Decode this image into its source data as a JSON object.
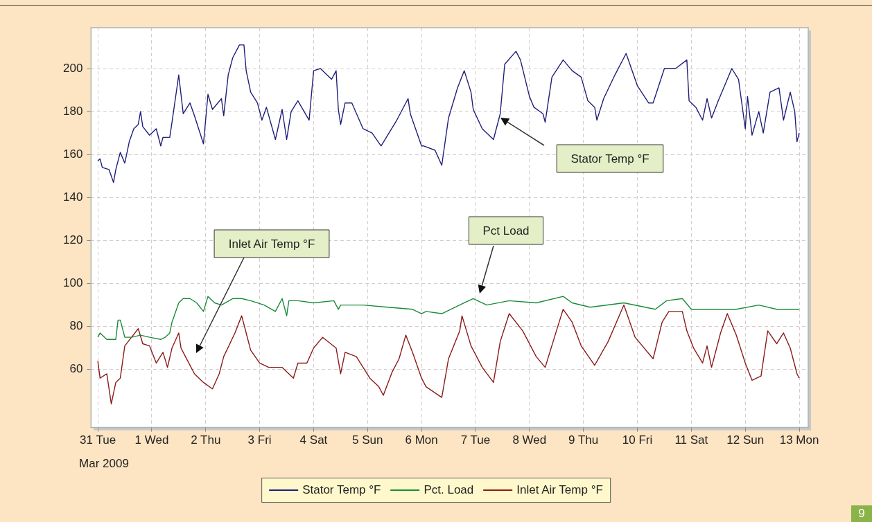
{
  "chart_data": {
    "type": "line",
    "xlabel": "Mar 2009",
    "annotations": [
      "Stator Temp °F",
      "Inlet Air Temp °F",
      "Pct Load",
      "9"
    ],
    "xlim": [
      "2009-03-30T21:00",
      "2009-04-13T04:00"
    ],
    "xticks": [
      {
        "value": "2009-03-31T00:00",
        "label": "31 Tue"
      },
      {
        "value": "2009-04-01T00:00",
        "label": "1 Wed"
      },
      {
        "value": "2009-04-02T00:00",
        "label": "2 Thu"
      },
      {
        "value": "2009-04-03T00:00",
        "label": "3 Fri"
      },
      {
        "value": "2009-04-04T00:00",
        "label": "4 Sat"
      },
      {
        "value": "2009-04-05T00:00",
        "label": "5 Sun"
      },
      {
        "value": "2009-04-06T00:00",
        "label": "6 Mon"
      },
      {
        "value": "2009-04-07T00:00",
        "label": "7 Tue"
      },
      {
        "value": "2009-04-08T00:00",
        "label": "8 Wed"
      },
      {
        "value": "2009-04-09T00:00",
        "label": "9 Thu"
      },
      {
        "value": "2009-04-10T00:00",
        "label": "10 Fri"
      },
      {
        "value": "2009-04-11T00:00",
        "label": "11 Sat"
      },
      {
        "value": "2009-04-12T00:00",
        "label": "12 Sun"
      },
      {
        "value": "2009-04-13T00:00",
        "label": "13 Mon"
      }
    ],
    "ylim": [
      33,
      219
    ],
    "yticks": [
      60,
      80,
      100,
      120,
      140,
      160,
      180,
      200
    ],
    "grid": true,
    "legend": "bottom",
    "line_style": "solid",
    "series": [
      {
        "name": "Stator Temp °F",
        "color": "#1f1f7a",
        "x": [
          "2009-03-31T00:00",
          "2009-03-31T01:00",
          "2009-03-31T02:00",
          "2009-03-31T05:00",
          "2009-03-31T07:00",
          "2009-03-31T08:00",
          "2009-03-31T10:00",
          "2009-03-31T12:00",
          "2009-03-31T14:00",
          "2009-03-31T16:00",
          "2009-03-31T18:00",
          "2009-03-31T19:00",
          "2009-03-31T20:00",
          "2009-03-31T23:00",
          "2009-04-01T02:00",
          "2009-04-01T04:00",
          "2009-04-01T05:00",
          "2009-04-01T08:00",
          "2009-04-01T09:00",
          "2009-04-01T12:00",
          "2009-04-01T14:00",
          "2009-04-01T17:00",
          "2009-04-01T19:00",
          "2009-04-01T23:00",
          "2009-04-02T01:00",
          "2009-04-02T03:00",
          "2009-04-02T07:00",
          "2009-04-02T08:00",
          "2009-04-02T10:00",
          "2009-04-02T12:00",
          "2009-04-02T15:00",
          "2009-04-02T17:00",
          "2009-04-02T18:00",
          "2009-04-02T20:00",
          "2009-04-02T23:00",
          "2009-04-03T01:00",
          "2009-04-03T03:00",
          "2009-04-03T07:00",
          "2009-04-03T10:00",
          "2009-04-03T12:00",
          "2009-04-03T14:00",
          "2009-04-03T17:00",
          "2009-04-03T22:00",
          "2009-04-04T00:00",
          "2009-04-04T03:00",
          "2009-04-04T08:00",
          "2009-04-04T10:00",
          "2009-04-04T11:00",
          "2009-04-04T12:00",
          "2009-04-04T14:00",
          "2009-04-04T17:00",
          "2009-04-04T22:00",
          "2009-04-05T02:00",
          "2009-04-05T06:00",
          "2009-04-05T13:00",
          "2009-04-05T18:00",
          "2009-04-05T19:00",
          "2009-04-06T00:00",
          "2009-04-06T01:00",
          "2009-04-06T06:00",
          "2009-04-06T09:00",
          "2009-04-06T12:00",
          "2009-04-06T16:00",
          "2009-04-06T19:00",
          "2009-04-06T22:00",
          "2009-04-06T23:00",
          "2009-04-07T03:00",
          "2009-04-07T08:00",
          "2009-04-07T11:00",
          "2009-04-07T13:00",
          "2009-04-07T18:00",
          "2009-04-07T20:00",
          "2009-04-08T00:00",
          "2009-04-08T02:00",
          "2009-04-08T06:00",
          "2009-04-08T07:00",
          "2009-04-08T10:00",
          "2009-04-08T15:00",
          "2009-04-08T19:00",
          "2009-04-08T23:00",
          "2009-04-09T02:00",
          "2009-04-09T05:00",
          "2009-04-09T06:00",
          "2009-04-09T09:00",
          "2009-04-09T14:00",
          "2009-04-09T19:00",
          "2009-04-10T00:00",
          "2009-04-10T05:00",
          "2009-04-10T07:00",
          "2009-04-10T12:00",
          "2009-04-10T17:00",
          "2009-04-10T22:00",
          "2009-04-10T23:00",
          "2009-04-11T02:00",
          "2009-04-11T05:00",
          "2009-04-11T07:00",
          "2009-04-11T09:00",
          "2009-04-11T12:00",
          "2009-04-11T18:00",
          "2009-04-11T21:00",
          "2009-04-12T00:00",
          "2009-04-12T01:00",
          "2009-04-12T03:00",
          "2009-04-12T06:00",
          "2009-04-12T08:00",
          "2009-04-12T11:00",
          "2009-04-12T15:00",
          "2009-04-12T17:00",
          "2009-04-12T20:00",
          "2009-04-12T22:00",
          "2009-04-12T23:00",
          "2009-04-13T00:00"
        ],
        "values": [
          157,
          158,
          154,
          153,
          147,
          153,
          161,
          156,
          166,
          172,
          174,
          180,
          173,
          169,
          172,
          164,
          168,
          168,
          175,
          197,
          179,
          184,
          178,
          165,
          188,
          181,
          186,
          178,
          197,
          205,
          211,
          211,
          199,
          189,
          184,
          176,
          182,
          167,
          181,
          167,
          180,
          185,
          176,
          199,
          200,
          195,
          199,
          181,
          174,
          184,
          184,
          172,
          170,
          164,
          176,
          186,
          179,
          164,
          164,
          162,
          155,
          177,
          191,
          199,
          189,
          181,
          172,
          167,
          179,
          202,
          208,
          204,
          187,
          182,
          179,
          175,
          196,
          204,
          199,
          196,
          185,
          182,
          176,
          186,
          197,
          207,
          192,
          184,
          184,
          200,
          200,
          204,
          185,
          182,
          176,
          186,
          177,
          185,
          200,
          195,
          172,
          187,
          169,
          180,
          170,
          189,
          191,
          176,
          189,
          180,
          166,
          170
        ]
      },
      {
        "name": "Pct. Load",
        "color": "#1a8a3a",
        "x": [
          "2009-03-31T00:00",
          "2009-03-31T01:00",
          "2009-03-31T04:00",
          "2009-03-31T08:00",
          "2009-03-31T09:00",
          "2009-03-31T10:00",
          "2009-03-31T12:00",
          "2009-03-31T15:00",
          "2009-03-31T19:00",
          "2009-03-31T23:00",
          "2009-04-01T04:00",
          "2009-04-01T06:00",
          "2009-04-01T08:00",
          "2009-04-01T09:00",
          "2009-04-01T12:00",
          "2009-04-01T14:00",
          "2009-04-01T17:00",
          "2009-04-01T20:00",
          "2009-04-01T23:00",
          "2009-04-02T01:00",
          "2009-04-02T04:00",
          "2009-04-02T07:00",
          "2009-04-02T12:00",
          "2009-04-02T16:00",
          "2009-04-02T20:00",
          "2009-04-03T02:00",
          "2009-04-03T07:00",
          "2009-04-03T10:00",
          "2009-04-03T12:00",
          "2009-04-03T13:00",
          "2009-04-03T17:00",
          "2009-04-04T00:00",
          "2009-04-04T09:00",
          "2009-04-04T11:00",
          "2009-04-04T12:00",
          "2009-04-04T22:00",
          "2009-04-05T09:00",
          "2009-04-05T20:00",
          "2009-04-06T00:00",
          "2009-04-06T02:00",
          "2009-04-06T09:00",
          "2009-04-06T19:00",
          "2009-04-06T23:00",
          "2009-04-07T05:00",
          "2009-04-07T15:00",
          "2009-04-08T03:00",
          "2009-04-08T15:00",
          "2009-04-08T19:00",
          "2009-04-09T03:00",
          "2009-04-09T18:00",
          "2009-04-10T08:00",
          "2009-04-10T13:00",
          "2009-04-10T20:00",
          "2009-04-11T00:00",
          "2009-04-11T08:00",
          "2009-04-11T20:00",
          "2009-04-12T06:00",
          "2009-04-12T14:00",
          "2009-04-13T00:00"
        ],
        "values": [
          75,
          77,
          74,
          74,
          83,
          83,
          75,
          75,
          76,
          75,
          74,
          75,
          77,
          82,
          91,
          93,
          93,
          91,
          87,
          94,
          91,
          90,
          93,
          93,
          92,
          90,
          87,
          93,
          85,
          92,
          92,
          91,
          92,
          88,
          90,
          90,
          89,
          88,
          86,
          87,
          86,
          91,
          93,
          90,
          92,
          91,
          94,
          91,
          89,
          91,
          88,
          92,
          93,
          88,
          88,
          88,
          90,
          88,
          88
        ]
      },
      {
        "name": "Inlet Air Temp °F",
        "color": "#8b1a1a",
        "x": [
          "2009-03-31T00:00",
          "2009-03-31T01:00",
          "2009-03-31T04:00",
          "2009-03-31T06:00",
          "2009-03-31T08:00",
          "2009-03-31T10:00",
          "2009-03-31T12:00",
          "2009-03-31T15:00",
          "2009-03-31T18:00",
          "2009-03-31T20:00",
          "2009-03-31T23:00",
          "2009-04-01T02:00",
          "2009-04-01T05:00",
          "2009-04-01T07:00",
          "2009-04-01T09:00",
          "2009-04-01T12:00",
          "2009-04-01T13:00",
          "2009-04-01T16:00",
          "2009-04-01T19:00",
          "2009-04-01T23:00",
          "2009-04-02T03:00",
          "2009-04-02T06:00",
          "2009-04-02T08:00",
          "2009-04-02T13:00",
          "2009-04-02T16:00",
          "2009-04-02T18:00",
          "2009-04-02T20:00",
          "2009-04-03T00:00",
          "2009-04-03T04:00",
          "2009-04-03T10:00",
          "2009-04-03T13:00",
          "2009-04-03T15:00",
          "2009-04-03T17:00",
          "2009-04-03T21:00",
          "2009-04-04T00:00",
          "2009-04-04T04:00",
          "2009-04-04T10:00",
          "2009-04-04T12:00",
          "2009-04-04T14:00",
          "2009-04-04T19:00",
          "2009-04-05T01:00",
          "2009-04-05T05:00",
          "2009-04-05T07:00",
          "2009-04-05T11:00",
          "2009-04-05T14:00",
          "2009-04-05T17:00",
          "2009-04-05T20:00",
          "2009-04-06T00:00",
          "2009-04-06T02:00",
          "2009-04-06T09:00",
          "2009-04-06T12:00",
          "2009-04-06T17:00",
          "2009-04-06T18:00",
          "2009-04-06T22:00",
          "2009-04-07T03:00",
          "2009-04-07T08:00",
          "2009-04-07T11:00",
          "2009-04-07T15:00",
          "2009-04-07T21:00",
          "2009-04-08T03:00",
          "2009-04-08T07:00",
          "2009-04-08T12:00",
          "2009-04-08T15:00",
          "2009-04-08T19:00",
          "2009-04-08T23:00",
          "2009-04-09T05:00",
          "2009-04-09T11:00",
          "2009-04-09T18:00",
          "2009-04-09T23:00",
          "2009-04-10T07:00",
          "2009-04-10T11:00",
          "2009-04-10T14:00",
          "2009-04-10T20:00",
          "2009-04-10T22:00",
          "2009-04-11T01:00",
          "2009-04-11T05:00",
          "2009-04-11T07:00",
          "2009-04-11T09:00",
          "2009-04-11T13:00",
          "2009-04-11T16:00",
          "2009-04-11T20:00",
          "2009-04-12T00:00",
          "2009-04-12T03:00",
          "2009-04-12T07:00",
          "2009-04-12T10:00",
          "2009-04-12T14:00",
          "2009-04-12T17:00",
          "2009-04-12T20:00",
          "2009-04-12T23:00",
          "2009-04-13T00:00"
        ],
        "values": [
          64,
          56,
          58,
          44,
          54,
          56,
          71,
          75,
          79,
          72,
          71,
          63,
          68,
          61,
          70,
          77,
          70,
          64,
          58,
          54,
          51,
          58,
          66,
          77,
          85,
          77,
          69,
          63,
          61,
          61,
          58,
          56,
          63,
          63,
          70,
          75,
          70,
          58,
          68,
          66,
          56,
          52,
          48,
          59,
          65,
          76,
          68,
          56,
          52,
          47,
          65,
          78,
          85,
          71,
          61,
          54,
          73,
          86,
          78,
          66,
          61,
          78,
          88,
          82,
          71,
          62,
          73,
          90,
          75,
          65,
          82,
          87,
          87,
          78,
          70,
          63,
          71,
          61,
          77,
          86,
          76,
          63,
          55,
          57,
          78,
          72,
          77,
          70,
          58,
          56
        ]
      }
    ]
  }
}
